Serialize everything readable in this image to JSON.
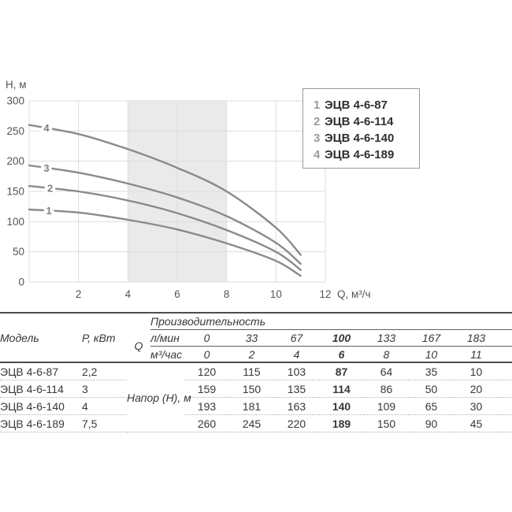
{
  "chart_data": {
    "type": "line",
    "title": "",
    "ylabel": "Н, м",
    "xlabel": "Q, м³/ч",
    "xlim": [
      0,
      12
    ],
    "ylim": [
      0,
      300
    ],
    "xticks": [
      2,
      4,
      6,
      8,
      10,
      12
    ],
    "yticks": [
      0,
      50,
      100,
      150,
      200,
      250,
      300
    ],
    "grid": true,
    "duty_band": {
      "x0": 4,
      "x1": 8
    },
    "x": [
      0,
      2,
      4,
      6,
      8,
      10,
      11
    ],
    "series": [
      {
        "label": "1",
        "name": "ЭЦВ 4-6-87",
        "label_q": 0.8,
        "values": [
          120,
          115,
          103,
          87,
          64,
          35,
          10
        ]
      },
      {
        "label": "2",
        "name": "ЭЦВ 4-6-114",
        "label_q": 0.85,
        "values": [
          159,
          150,
          135,
          114,
          86,
          50,
          20
        ]
      },
      {
        "label": "3",
        "name": "ЭЦВ 4-6-140",
        "label_q": 0.7,
        "values": [
          193,
          181,
          163,
          140,
          109,
          65,
          30
        ]
      },
      {
        "label": "4",
        "name": "ЭЦВ 4-6-189",
        "label_q": 0.7,
        "values": [
          260,
          245,
          220,
          189,
          150,
          90,
          45
        ]
      }
    ],
    "legend_position": "top-right",
    "colors": {
      "curve": "#8a8a8a",
      "grid": "#dddddd",
      "band": "#eaeaea",
      "tick_text": "#555555",
      "curve_label": "#7f7f7f"
    }
  },
  "table": {
    "header": {
      "model": "Модель",
      "power": "Р, кВт",
      "q": "Q",
      "productivity": "Производительность",
      "unit_lmin": "л/мин",
      "unit_m3h": "м³/час",
      "lmin_values": [
        "0",
        "33",
        "67",
        "100",
        "133",
        "167",
        "183"
      ],
      "m3h_values": [
        "0",
        "2",
        "4",
        "6",
        "8",
        "10",
        "11"
      ],
      "head_label": "Напор (Н), м"
    },
    "emphasis_col": 3,
    "rows": [
      {
        "model": "ЭЦВ 4-6-87",
        "power": "2,2",
        "values": [
          "120",
          "115",
          "103",
          "87",
          "64",
          "35",
          "10"
        ]
      },
      {
        "model": "ЭЦВ 4-6-114",
        "power": "3",
        "values": [
          "159",
          "150",
          "135",
          "114",
          "86",
          "50",
          "20"
        ]
      },
      {
        "model": "ЭЦВ 4-6-140",
        "power": "4",
        "values": [
          "193",
          "181",
          "163",
          "140",
          "109",
          "65",
          "30"
        ]
      },
      {
        "model": "ЭЦВ 4-6-189",
        "power": "7,5",
        "values": [
          "260",
          "245",
          "220",
          "189",
          "150",
          "90",
          "45"
        ]
      }
    ]
  }
}
